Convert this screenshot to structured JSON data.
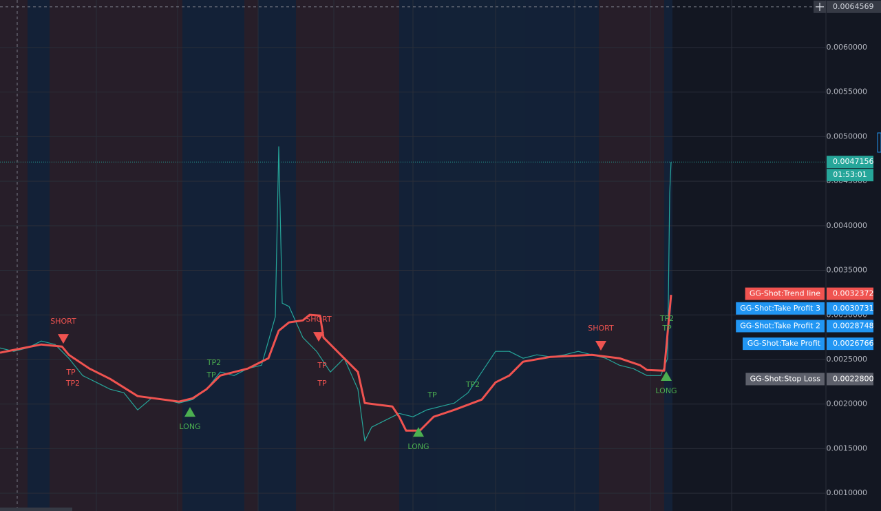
{
  "chart_data": {
    "type": "line",
    "xlim": [
      0,
      120
    ],
    "ylim": [
      0.0008,
      0.006533
    ],
    "yticks": [
      {
        "value": 0.001,
        "label": "0.0010000"
      },
      {
        "value": 0.0015,
        "label": "0.0015000"
      },
      {
        "value": 0.002,
        "label": "0.0020000"
      },
      {
        "value": 0.0025,
        "label": "0.0025000"
      },
      {
        "value": 0.003,
        "label": "0.0030000"
      },
      {
        "value": 0.0035,
        "label": "0.0035000"
      },
      {
        "value": 0.004,
        "label": "0.0040000"
      },
      {
        "value": 0.0045,
        "label": "0.0045000"
      },
      {
        "value": 0.005,
        "label": "0.0050000"
      },
      {
        "value": 0.0055,
        "label": "0.0055000"
      },
      {
        "value": 0.006,
        "label": "0.0060000"
      }
    ],
    "series": [
      {
        "color": "#26a69a",
        "width": 1.2,
        "x": [
          0,
          2,
          4,
          6,
          8,
          10,
          12,
          14,
          16,
          18,
          20,
          22,
          24,
          26,
          28,
          30,
          32,
          34,
          36,
          38,
          40,
          40.5,
          41,
          42,
          44,
          46,
          48,
          50,
          52,
          53,
          54,
          56,
          58,
          60,
          62,
          64,
          66,
          68,
          70,
          72,
          74,
          76,
          78,
          80,
          82,
          84,
          86,
          88,
          90,
          92,
          94,
          96,
          97,
          97.3,
          97.5
        ],
        "values": [
          0.00263,
          0.002591,
          0.00263,
          0.002707,
          0.002668,
          0.002514,
          0.00232,
          0.002243,
          0.002166,
          0.002127,
          0.001934,
          0.002065,
          0.00205,
          0.002011,
          0.00205,
          0.002166,
          0.002359,
          0.00232,
          0.002398,
          0.002436,
          0.002978,
          0.004887,
          0.003132,
          0.003094,
          0.002746,
          0.002591,
          0.002359,
          0.002514,
          0.002166,
          0.001586,
          0.001741,
          0.001818,
          0.001895,
          0.001857,
          0.001934,
          0.001973,
          0.002011,
          0.002127,
          0.002359,
          0.002591,
          0.002591,
          0.002514,
          0.002552,
          0.002529,
          0.002552,
          0.002591,
          0.002552,
          0.002514,
          0.002436,
          0.002398,
          0.00232,
          0.00232,
          0.002514,
          0.004369,
          0.004717
        ]
      },
      {
        "color": "#f05350",
        "width": 3,
        "x": [
          0,
          6,
          9,
          10,
          13,
          16,
          20,
          26,
          28,
          30,
          32,
          36,
          39,
          40.5,
          42,
          44,
          45,
          46.5,
          47,
          50,
          52,
          53,
          57,
          58,
          59,
          61,
          63,
          66,
          70,
          72,
          74,
          76,
          80,
          86,
          90,
          93,
          94,
          96.5,
          97.5
        ],
        "values": [
          0.002576,
          0.002668,
          0.002645,
          0.002552,
          0.002398,
          0.002282,
          0.002089,
          0.002027,
          0.002065,
          0.002166,
          0.00232,
          0.002398,
          0.002514,
          0.002823,
          0.002916,
          0.002939,
          0.003001,
          0.002993,
          0.002746,
          0.002514,
          0.002359,
          0.002011,
          0.001973,
          0.001857,
          0.001702,
          0.001702,
          0.001857,
          0.001934,
          0.00205,
          0.002243,
          0.00232,
          0.002475,
          0.002529,
          0.002552,
          0.002514,
          0.002436,
          0.002382,
          0.002374,
          0.003225
        ]
      }
    ],
    "markers": [
      {
        "x": 9.2,
        "y": 0.002731,
        "direction": "down",
        "color": "#f05350",
        "text": "SHORT"
      },
      {
        "x": 46.3,
        "y": 0.002754,
        "direction": "down",
        "color": "#f05350",
        "text": "SHORT"
      },
      {
        "x": 87.3,
        "y": 0.002654,
        "direction": "down",
        "color": "#f05350",
        "text": "SHORT"
      },
      {
        "x": 27.6,
        "y": 0.001912,
        "direction": "up",
        "color": "#4caf50",
        "text": "LONG"
      },
      {
        "x": 60.8,
        "y": 0.001688,
        "direction": "up",
        "color": "#4caf50",
        "text": "LONG"
      },
      {
        "x": 96.8,
        "y": 0.002314,
        "direction": "up",
        "color": "#4caf50",
        "text": "LONG"
      }
    ],
    "labels": [
      {
        "text": "TP2",
        "x": 31.1,
        "y": 0.002461,
        "color": "#4caf50"
      },
      {
        "text": "TP",
        "x": 30.7,
        "y": 0.002321,
        "color": "#4caf50"
      },
      {
        "text": "TP",
        "x": 62.8,
        "y": 0.002097,
        "color": "#4caf50"
      },
      {
        "text": "TP2",
        "x": 68.7,
        "y": 0.002213,
        "color": "#4caf50"
      },
      {
        "text": "TP2",
        "x": 96.9,
        "y": 0.002955,
        "color": "#4caf50"
      },
      {
        "text": "TP",
        "x": 96.9,
        "y": 0.002847,
        "color": "#4caf50"
      },
      {
        "text": "TP",
        "x": 10.3,
        "y": 0.002352,
        "color": "#f05350"
      },
      {
        "text": "TP2",
        "x": 10.6,
        "y": 0.002229,
        "color": "#f05350"
      },
      {
        "text": "TP",
        "x": 46.8,
        "y": 0.00243,
        "color": "#f05350"
      },
      {
        "text": "TP",
        "x": 46.8,
        "y": 0.002229,
        "color": "#f05350"
      }
    ],
    "price_labels": [
      {
        "name": "GG-Shot:Trend line",
        "value": 0.0032372,
        "label": "0.0032372",
        "color": "#f05350"
      },
      {
        "name": "GG-Shot:Take Profit 3",
        "value": 0.0030731,
        "label": "0.0030731",
        "color": "#2196f3"
      },
      {
        "name": "GG-Shot:Take Profit 2",
        "value": 0.0028748,
        "label": "0.0028748",
        "color": "#2196f3"
      },
      {
        "name": "GG-Shot:Take Profit",
        "value": 0.0026766,
        "label": "0.0026766",
        "color": "#2196f3"
      },
      {
        "name": "GG-Shot:Stop Loss",
        "value": 0.00228,
        "label": "0.0022800",
        "color": "#5d606b"
      }
    ],
    "last_price": {
      "value": 0.0047156,
      "label": "0.0047156",
      "countdown": "01:53:01",
      "color": "#26a69a"
    },
    "crosshair": {
      "value": 0.0064569,
      "label": "0.0064569"
    }
  }
}
